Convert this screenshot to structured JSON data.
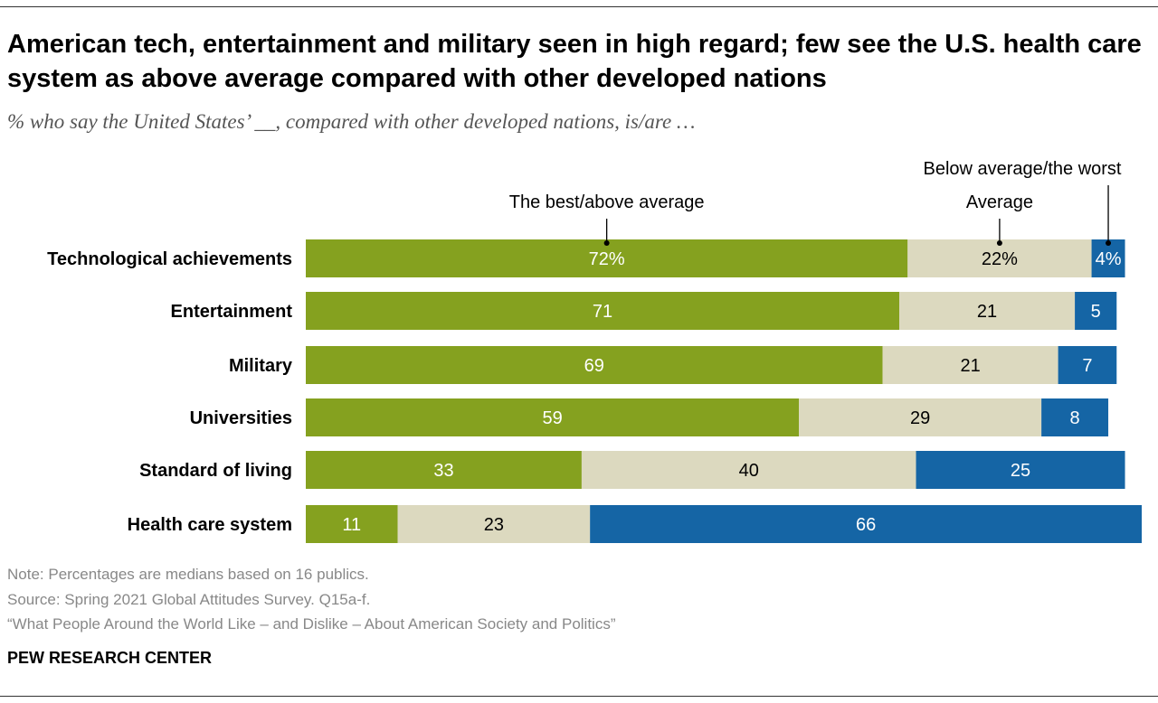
{
  "title": "American tech, entertainment and military seen in high regard; few see the U.S. health care system as above average compared with other developed nations",
  "subtitle": "% who say the United States’ __, compared with other developed nations, is/are …",
  "chart_data": {
    "type": "bar",
    "orientation": "horizontal",
    "stacked": true,
    "categories": [
      "Technological achievements",
      "Entertainment",
      "Military",
      "Universities",
      "Standard of living",
      "Health care system"
    ],
    "series": [
      {
        "name": "The best/above average",
        "color": "#85a11f",
        "values": [
          72,
          71,
          69,
          59,
          33,
          11
        ],
        "labels": [
          "72%",
          "71",
          "69",
          "59",
          "33",
          "11"
        ],
        "label_color": "#ffffff"
      },
      {
        "name": "Average",
        "color": "#dcd9bf",
        "values": [
          22,
          21,
          21,
          29,
          40,
          23
        ],
        "labels": [
          "22%",
          "21",
          "21",
          "29",
          "40",
          "23"
        ],
        "label_color": "#000000"
      },
      {
        "name": "Below average/the worst",
        "color": "#1565a5",
        "values": [
          4,
          5,
          7,
          8,
          25,
          66
        ],
        "labels": [
          "4%",
          "5",
          "7",
          "8",
          "25",
          "66"
        ],
        "label_color": "#ffffff"
      }
    ],
    "xlim": [
      0,
      100
    ],
    "grid": false,
    "legend": "top, labels above first bar"
  },
  "notes": [
    "Note: Percentages are medians based on 16 publics.",
    "Source: Spring 2021 Global Attitudes Survey. Q15a-f.",
    "“What People Around the World Like – and Dislike – About American Society and Politics”"
  ],
  "brand": "PEW RESEARCH CENTER"
}
